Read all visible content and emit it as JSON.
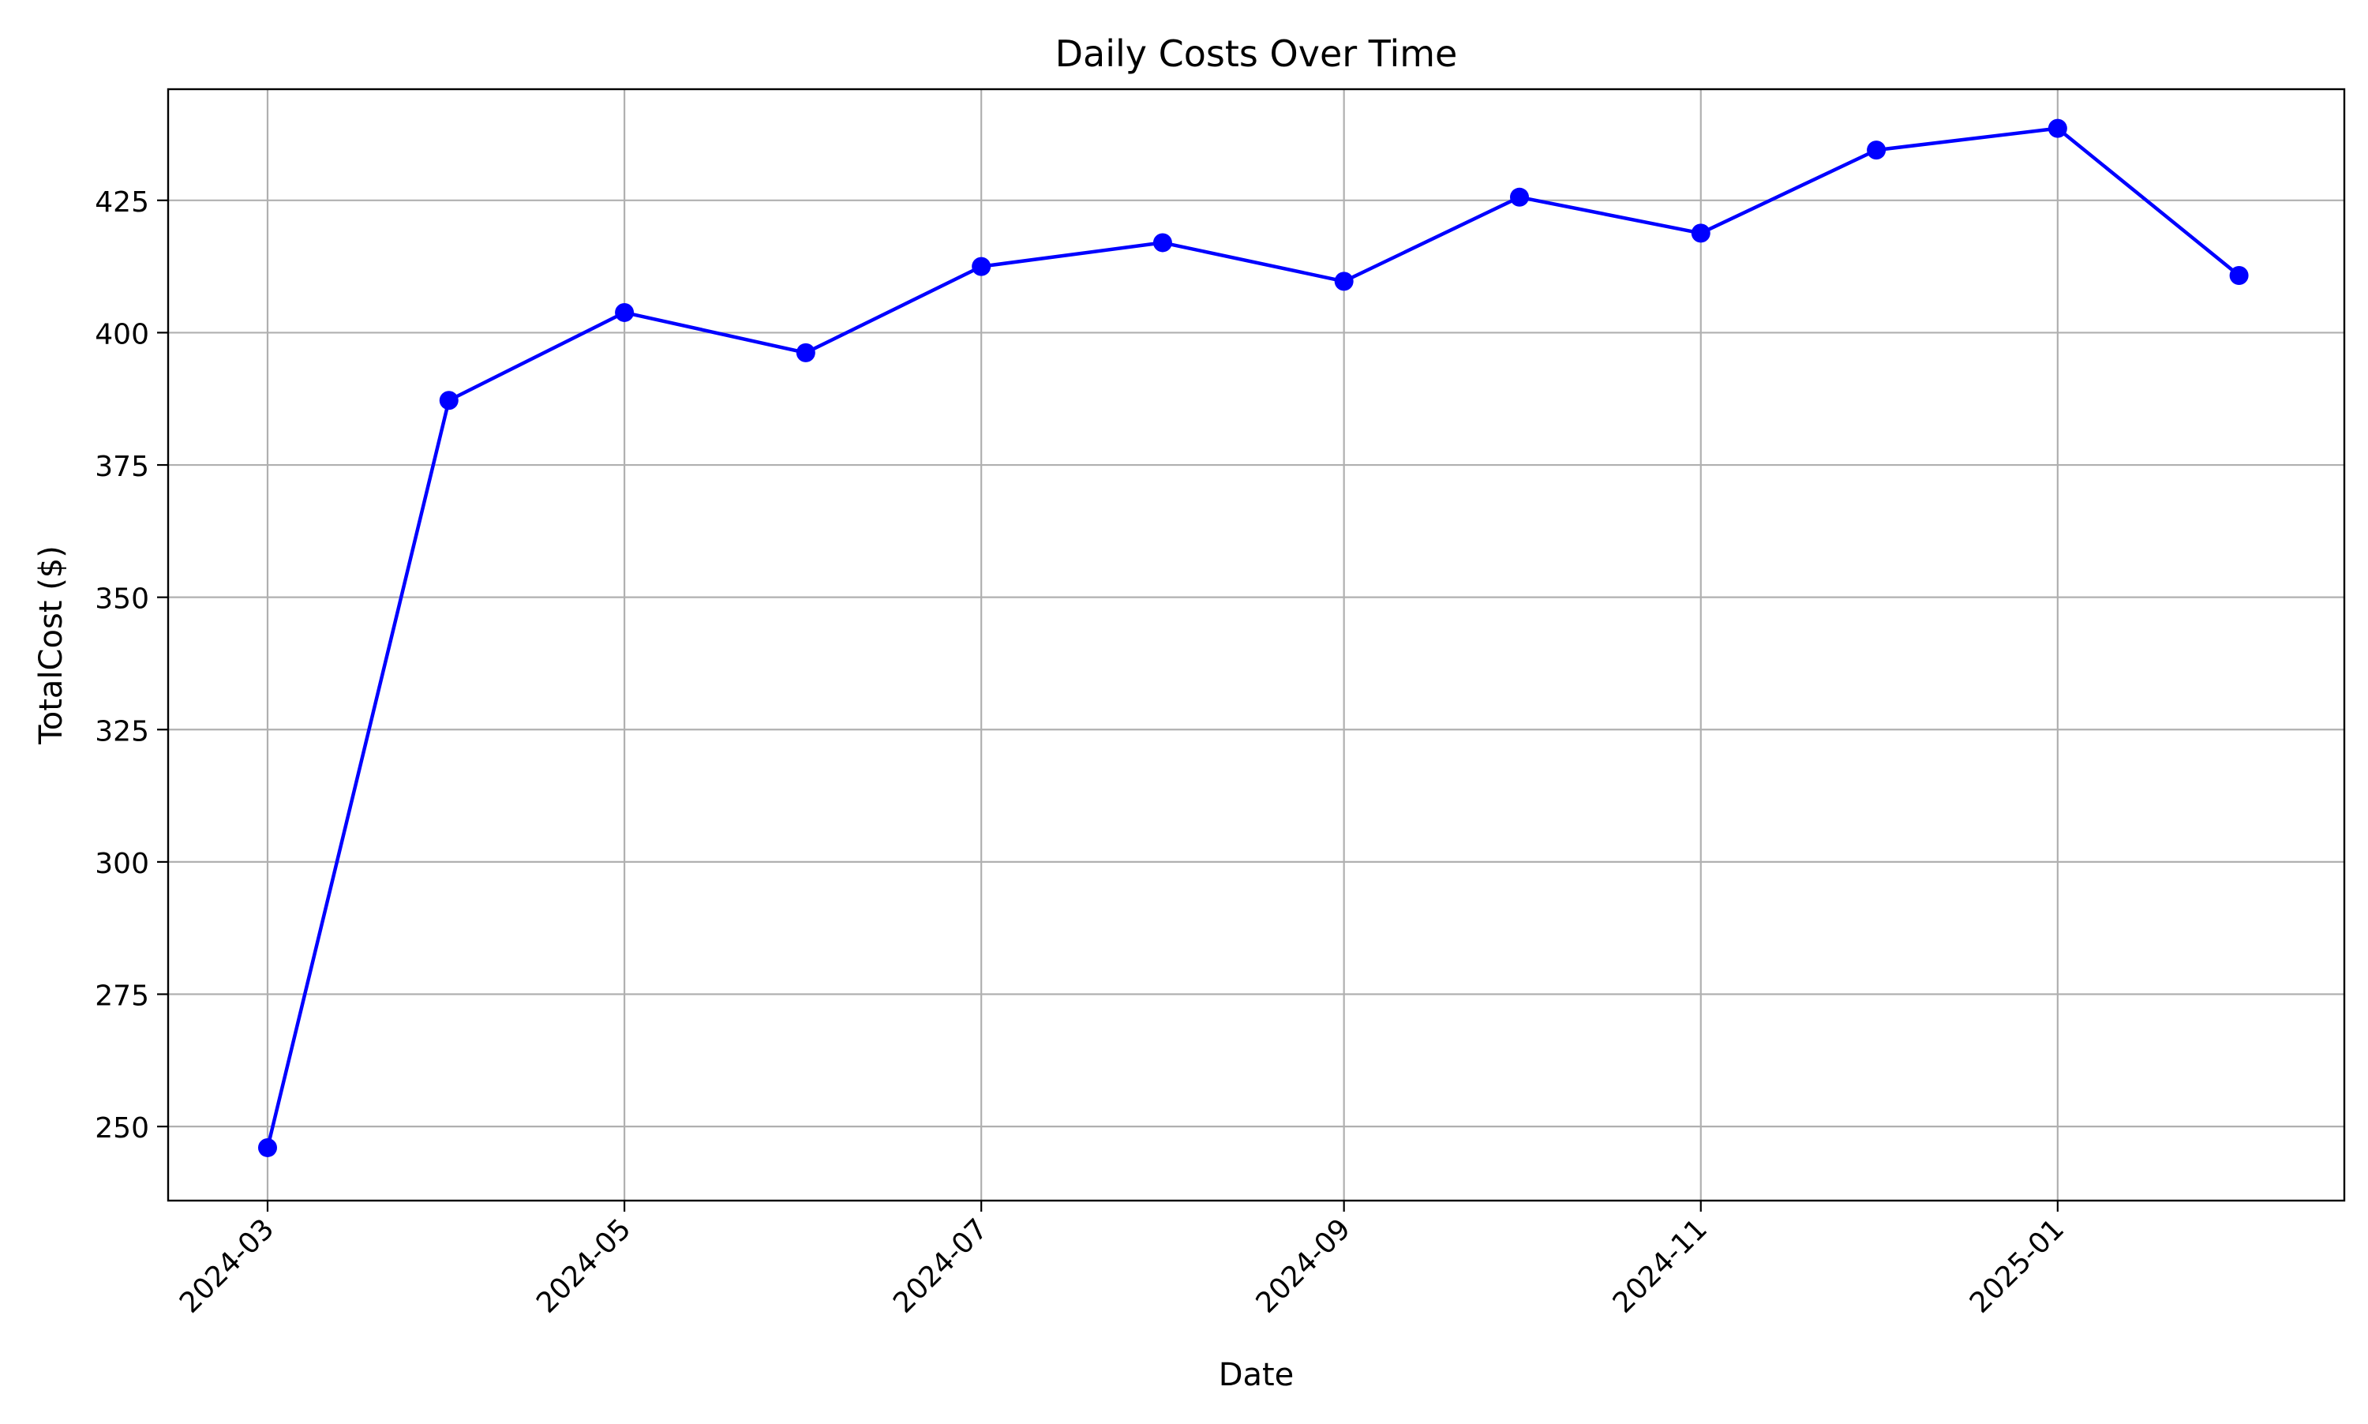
{
  "chart_data": {
    "type": "line",
    "title": "Daily Costs Over Time",
    "xlabel": "Date",
    "ylabel": "TotalCost ($)",
    "x": [
      "2024-03-01",
      "2024-04-01",
      "2024-05-01",
      "2024-06-01",
      "2024-07-01",
      "2024-08-01",
      "2024-09-01",
      "2024-10-01",
      "2024-11-01",
      "2024-12-01",
      "2025-01-01",
      "2025-02-01"
    ],
    "series": [
      {
        "values": [
          246,
          387.2,
          403.8,
          396.2,
          412.5,
          417,
          409.7,
          425.6,
          418.8,
          434.5,
          438.6,
          410.8
        ],
        "color": "#0000ff",
        "marker": "circle"
      }
    ],
    "xticks": [
      "2024-03",
      "2024-05",
      "2024-07",
      "2024-09",
      "2024-11",
      "2025-01"
    ],
    "xlim": [
      "2024-02-13",
      "2025-02-19"
    ],
    "yticks": [
      250,
      275,
      300,
      325,
      350,
      375,
      400,
      425
    ],
    "ylim": [
      236,
      446
    ],
    "grid": true,
    "colors": {
      "line": "#0000ff",
      "grid": "#b0b0b0",
      "axes": "#000000"
    }
  }
}
